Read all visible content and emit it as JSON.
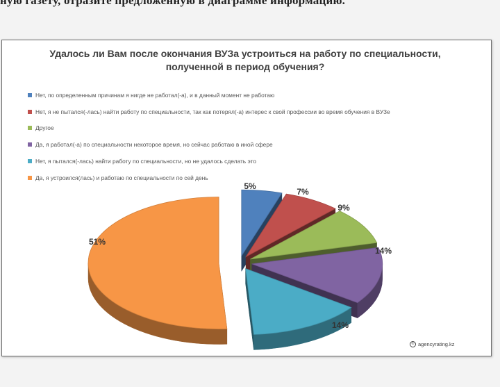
{
  "page": {
    "top_text": "ную газету, отразите предложенную в диаграмме информацию."
  },
  "chart_data": {
    "type": "pie",
    "title": "Удалось ли Вам после окончания ВУЗа устроиться на работу по специальности, полученной в период обучения?",
    "title_lines": [
      "Удалось ли Вам после окончания ВУЗа устроиться на работу по специальности,",
      "полученной в период обучения?"
    ],
    "legend_position": "top-left",
    "source": "agencyrating.kz",
    "slices": [
      {
        "name": "Нет, по определенным причинам я нигде не работал(-а), и в данный момент не работаю",
        "value": 5,
        "label": "5%",
        "color": "#4f81bd"
      },
      {
        "name": "Нет, я не пытался(-лась) найти работу по специальности, так как потерял(-а) интерес к свой профессии во время обучения в ВУЗе",
        "value": 7,
        "label": "7%",
        "color": "#c0504d"
      },
      {
        "name": "Другое",
        "value": 9,
        "label": "9%",
        "color": "#9bbb59"
      },
      {
        "name": "Да, я работал(-а) по специальности некоторое время, но сейчас работаю в иной сфере",
        "value": 14,
        "label": "14%",
        "color": "#8064a2"
      },
      {
        "name": "Нет, я пытался(-лась) найти работу по специальности, но не удалось сделать это",
        "value": 14,
        "label": "14%",
        "color": "#4bacc6"
      },
      {
        "name": "Да, я устроился(лась) и работаю по специальности по сей день",
        "value": 51,
        "label": "51%",
        "color": "#f79646"
      }
    ]
  }
}
